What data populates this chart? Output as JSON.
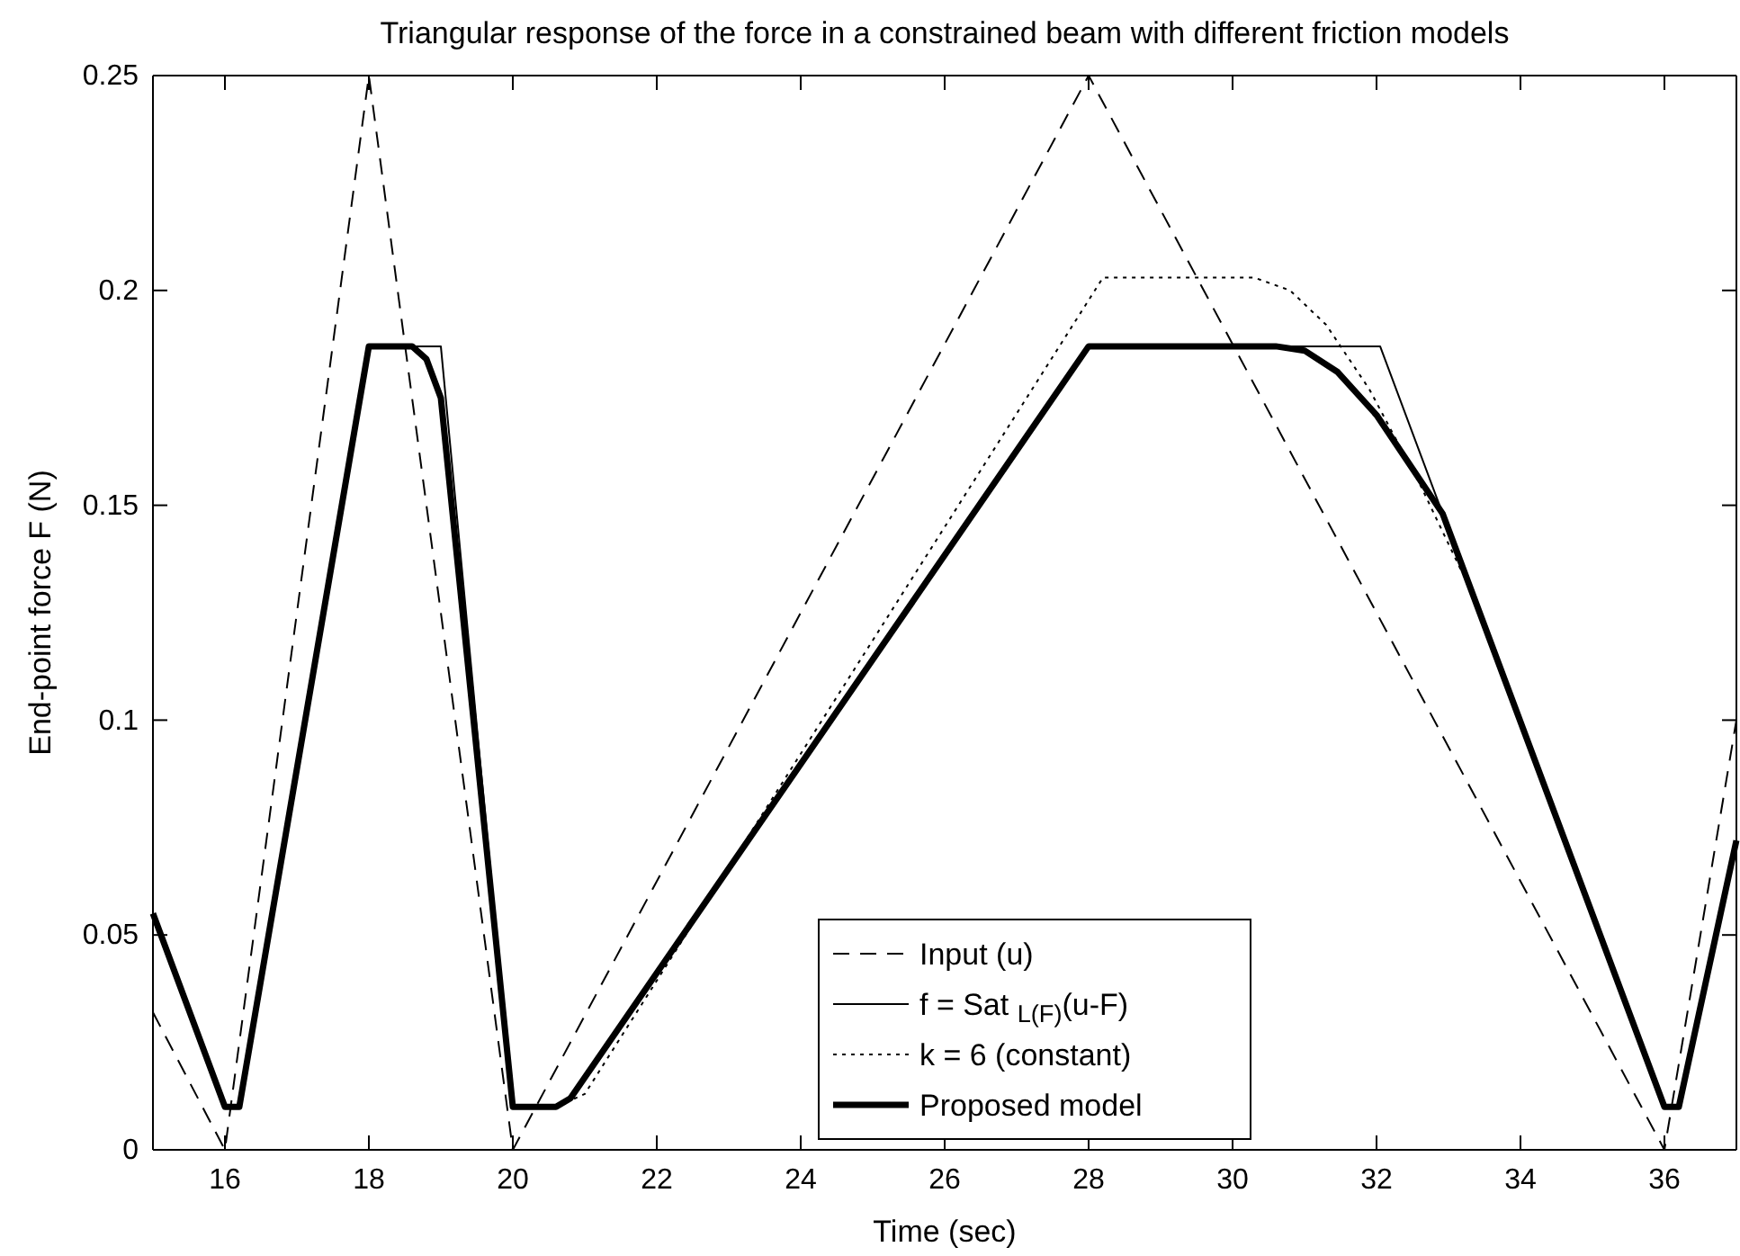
{
  "chart_data": {
    "type": "line",
    "title": "Triangular response of the force in a constrained beam with different friction models",
    "xlabel": "Time (sec)",
    "ylabel": "End-point force F (N)",
    "xlim": [
      15,
      37
    ],
    "xticks": [
      16,
      18,
      20,
      22,
      24,
      26,
      28,
      30,
      32,
      34,
      36
    ],
    "ylim": [
      0,
      0.25
    ],
    "yticks": [
      0,
      0.05,
      0.1,
      0.15,
      0.2,
      0.25
    ],
    "grid": false,
    "legend": "bottom",
    "marker": "none",
    "series": [
      {
        "name": "Input (u)",
        "color": "#000000",
        "line_style": "dashed",
        "x": [
          15,
          16,
          18,
          20,
          28,
          36,
          37
        ],
        "values": [
          0.032,
          0,
          0.25,
          0,
          0.25,
          0,
          0.1
        ]
      },
      {
        "name": "f = Sat $_{L(F)}$(u-F)",
        "color": "#000000",
        "line_style": "solid",
        "x": [
          15,
          16,
          16.2,
          18,
          19,
          20,
          20.6,
          20.8,
          28,
          32.05,
          32.92,
          36,
          36.2,
          37
        ],
        "values": [
          0.055,
          0.01,
          0.01,
          0.187,
          0.187,
          0.01,
          0.01,
          0.012,
          0.187,
          0.187,
          0.148,
          0.01,
          0.01,
          0.072
        ]
      },
      {
        "name": "k = 6 (constant)",
        "color": "#000000",
        "line_style": "dotted",
        "x": [
          20,
          20.6,
          21,
          28.2,
          30.3,
          30.8,
          31.3,
          31.9,
          32.6,
          33.2
        ],
        "values": [
          0.01,
          0.01,
          0.013,
          0.203,
          0.203,
          0.2,
          0.192,
          0.177,
          0.155,
          0.134
        ]
      },
      {
        "name": "Proposed model",
        "color": "#000000",
        "line_style": "solid",
        "x": [
          15,
          16,
          16.2,
          18,
          18.6,
          18.8,
          19,
          20,
          20.6,
          20.8,
          28,
          30.6,
          31,
          31.46,
          32,
          32.92,
          36,
          36.2,
          37
        ],
        "values": [
          0.055,
          0.01,
          0.01,
          0.187,
          0.187,
          0.184,
          0.175,
          0.01,
          0.01,
          0.012,
          0.187,
          0.187,
          0.186,
          0.181,
          0.171,
          0.148,
          0.01,
          0.01,
          0.072
        ]
      }
    ]
  }
}
